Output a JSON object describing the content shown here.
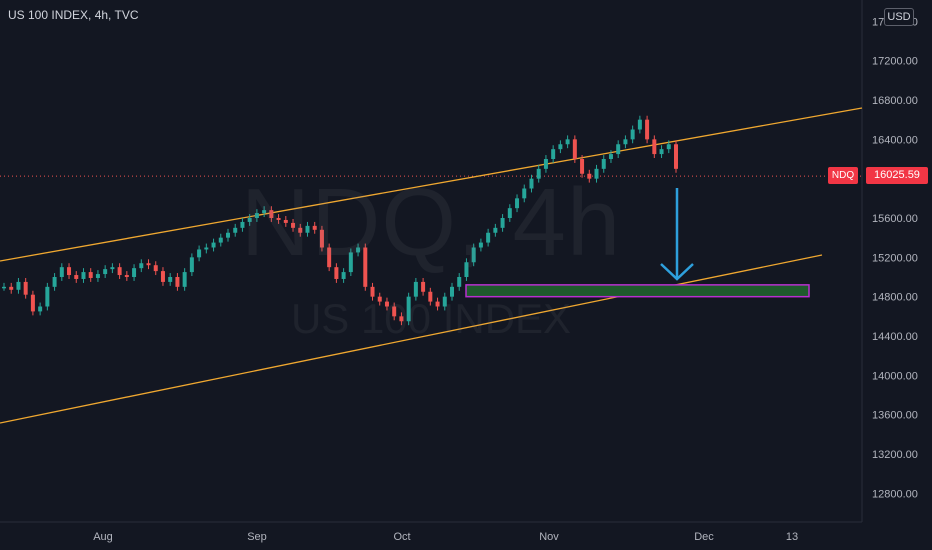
{
  "header": {
    "title": "US 100 INDEX, 4h, TVC",
    "currency": "USD"
  },
  "watermark": {
    "symbol": "NDQ, 4h",
    "name": "US 100 INDEX"
  },
  "price_axis": {
    "symbol_tag": "NDQ",
    "last_price": "16025.59"
  },
  "colors": {
    "up": "#26a69a",
    "down": "#ef5350",
    "channel": "#f0a830",
    "arrow": "#2ea0dd",
    "zone_fill": "#1e5a2c",
    "zone_border": "#b82fd0",
    "background": "#131722"
  },
  "chart_data": {
    "type": "candlestick",
    "y_ticks": [
      "12800.00",
      "13200.00",
      "13600.00",
      "14000.00",
      "14400.00",
      "14800.00",
      "15200.00",
      "15600.00",
      "16000.00",
      "16400.00",
      "16800.00",
      "17200.00",
      "17600.00"
    ],
    "x_ticks": [
      "Aug",
      "Sep",
      "Oct",
      "Nov",
      "Dec",
      "13"
    ],
    "ylim": [
      12500,
      17800
    ],
    "series": [
      {
        "values": [
          14900,
          14870,
          14950,
          14820,
          14650,
          14700,
          14900,
          15000,
          15100,
          15020,
          14980,
          15050,
          14990,
          15030,
          15080,
          15100,
          15020,
          15000,
          15090,
          15140,
          15120,
          15060,
          14950,
          15000,
          14900,
          15050,
          15200,
          15280,
          15300,
          15350,
          15400,
          15450,
          15500,
          15560,
          15600,
          15650,
          15680,
          15600,
          15580,
          15550,
          15500,
          15450,
          15520,
          15480,
          15300,
          15100,
          14980,
          15050,
          15250,
          15300,
          14900,
          14800,
          14750,
          14700,
          14600,
          14550,
          14800,
          14950,
          14850,
          14750,
          14700,
          14800,
          14900,
          15000,
          15150,
          15300,
          15350,
          15450,
          15500,
          15600,
          15700,
          15800,
          15900,
          16000,
          16100,
          16200,
          16300,
          16350,
          16400,
          16200,
          16050,
          16000,
          16100,
          16200,
          16250,
          16350,
          16400,
          16500,
          16600,
          16400,
          16250,
          16300,
          16350,
          16100
        ]
      }
    ],
    "annotations": {
      "channel_lines": "2 parallel lines",
      "target_zone": [
        14800,
        14920
      ]
    }
  }
}
